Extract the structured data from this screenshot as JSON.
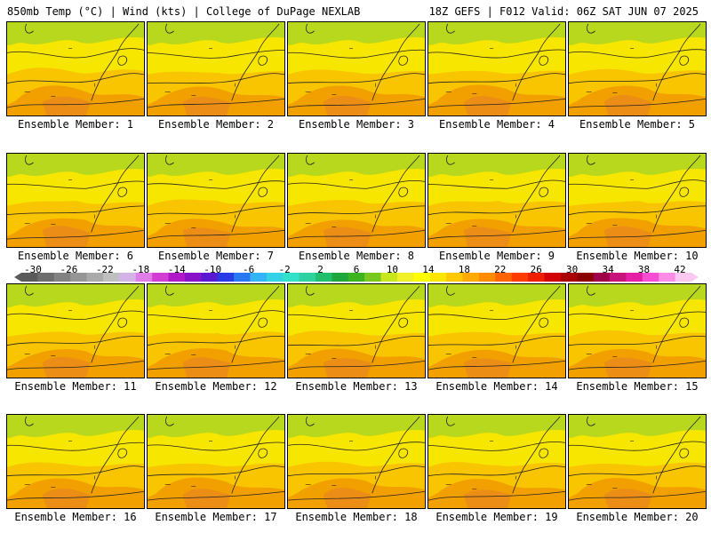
{
  "header": {
    "left_title": "850mb Temp (°C) | Wind (kts) | College of DuPage NEXLAB",
    "right_title": "18Z GEFS | F012 Valid: 06Z SAT JUN 07 2025"
  },
  "members": [
    {
      "label": "Ensemble Member: 1"
    },
    {
      "label": "Ensemble Member: 2"
    },
    {
      "label": "Ensemble Member: 3"
    },
    {
      "label": "Ensemble Member: 4"
    },
    {
      "label": "Ensemble Member: 5"
    },
    {
      "label": "Ensemble Member: 6"
    },
    {
      "label": "Ensemble Member: 7"
    },
    {
      "label": "Ensemble Member: 8"
    },
    {
      "label": "Ensemble Member: 9"
    },
    {
      "label": "Ensemble Member: 10"
    },
    {
      "label": "Ensemble Member: 11"
    },
    {
      "label": "Ensemble Member: 12"
    },
    {
      "label": "Ensemble Member: 13"
    },
    {
      "label": "Ensemble Member: 14"
    },
    {
      "label": "Ensemble Member: 15"
    },
    {
      "label": "Ensemble Member: 16"
    },
    {
      "label": "Ensemble Member: 17"
    },
    {
      "label": "Ensemble Member: 18"
    },
    {
      "label": "Ensemble Member: 19"
    },
    {
      "label": "Ensemble Member: 20"
    }
  ],
  "colorbar": {
    "tick_labels": [
      "-30",
      "-26",
      "-22",
      "-18",
      "-14",
      "-10",
      "-6",
      "-2",
      "2",
      "6",
      "10",
      "14",
      "18",
      "22",
      "26",
      "30",
      "34",
      "38",
      "42"
    ],
    "colors": [
      "#5a5a5a",
      "#6e6e6e",
      "#828282",
      "#969696",
      "#aaaaaa",
      "#bfbfbf",
      "#d2b4e6",
      "#e07ce6",
      "#d23ed2",
      "#b019c8",
      "#8a12c8",
      "#5a1ad2",
      "#2a3ae6",
      "#2a78f0",
      "#33b4f5",
      "#33d2e6",
      "#33e0c8",
      "#2ed2a0",
      "#22c06e",
      "#1ea83c",
      "#3cb41e",
      "#78c81e",
      "#c8e61e",
      "#f0f028",
      "#ffff00",
      "#ffe600",
      "#ffc800",
      "#ffaa00",
      "#ff8c00",
      "#ff6400",
      "#ff3c00",
      "#f01e00",
      "#d20000",
      "#aa0000",
      "#8c0000",
      "#a0004a",
      "#c8147a",
      "#e61ea6",
      "#f54ed2",
      "#fa8ce6",
      "#fcc8f0"
    ]
  },
  "field_colors": {
    "yellow": "#f7e600",
    "light_orange": "#f9c400",
    "orange": "#f2a000",
    "dark_orange": "#ea8a1a",
    "green": "#b8d81e",
    "contour": "#222222"
  }
}
